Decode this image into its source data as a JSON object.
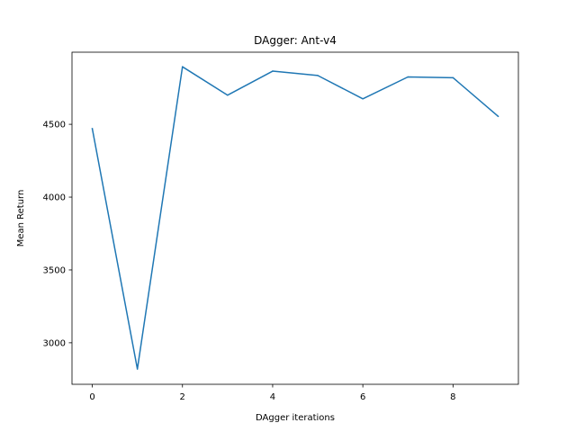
{
  "chart_data": {
    "type": "line",
    "title": "DAgger: Ant-v4",
    "xlabel": "DAgger iterations",
    "ylabel": "Mean Return",
    "x": [
      0,
      1,
      2,
      3,
      4,
      5,
      6,
      7,
      8,
      9
    ],
    "series": [
      {
        "values": [
          4470,
          2820,
          4895,
          4700,
          4865,
          4835,
          4675,
          4825,
          4820,
          4555
        ],
        "color": "#1f77b4"
      }
    ],
    "xlim": [
      -0.45,
      9.45
    ],
    "ylim": [
      2715,
      4995
    ],
    "xticks": [
      0,
      2,
      4,
      6,
      8
    ],
    "yticks": [
      3000,
      3500,
      4000,
      4500
    ],
    "grid": false,
    "legend": false
  }
}
